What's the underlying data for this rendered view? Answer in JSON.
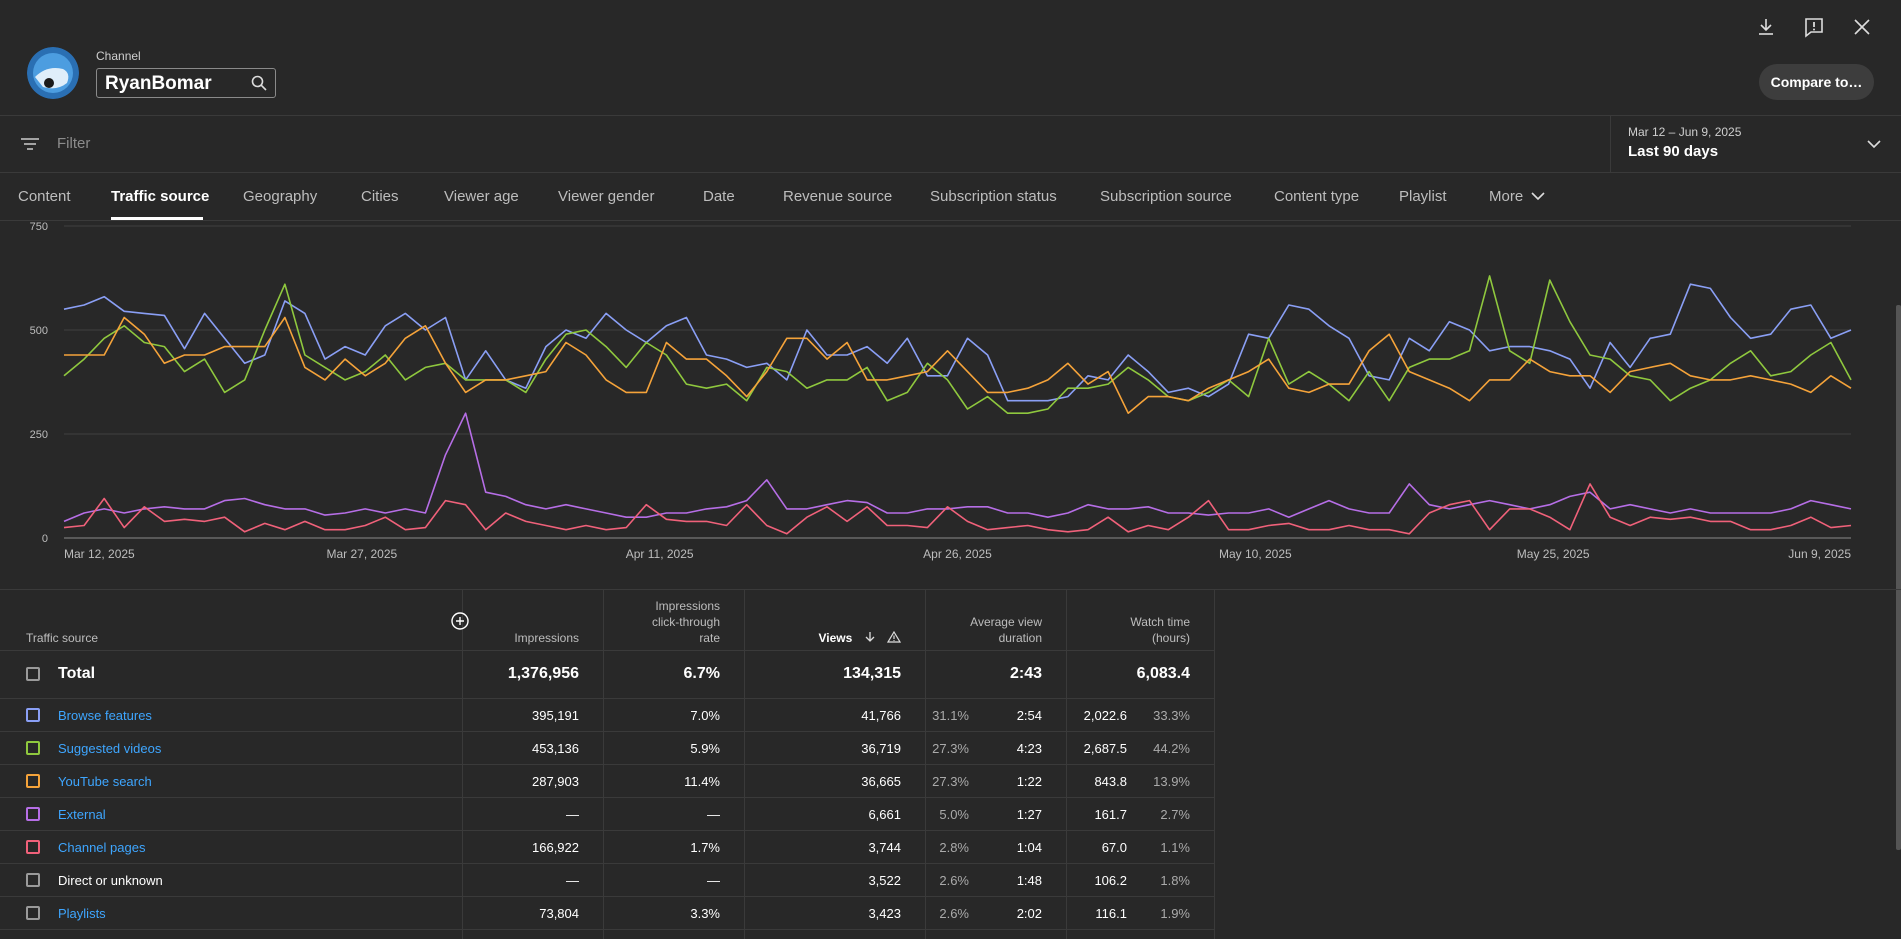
{
  "header": {
    "channel_label": "Channel",
    "channel_name": "RyanBomar",
    "compare_label": "Compare to…",
    "icons": [
      "download-icon",
      "feedback-icon",
      "close-icon",
      "search-icon"
    ]
  },
  "filter": {
    "placeholder": "Filter",
    "date_range": "Mar 12 – Jun 9, 2025",
    "date_label": "Last 90 days"
  },
  "tabs": [
    "Content",
    "Traffic source",
    "Geography",
    "Cities",
    "Viewer age",
    "Viewer gender",
    "Date",
    "Revenue source",
    "Subscription status",
    "Subscription source",
    "Content type",
    "Playlist",
    "More"
  ],
  "active_tab": "Traffic source",
  "colors": {
    "browse": "#8a9ff5",
    "suggested": "#8fc83e",
    "search": "#f5a33a",
    "external": "#b66ee6",
    "channel": "#f0617a",
    "neutral": "#9a9a9a",
    "link": "#3ea6ff"
  },
  "chart_data": {
    "type": "line",
    "y_ticks": [
      "750",
      "500",
      "250",
      "0"
    ],
    "ylim": [
      0,
      750
    ],
    "x_labels": [
      "Mar 12, 2025",
      "Mar 27, 2025",
      "Apr 11, 2025",
      "Apr 26, 2025",
      "May 10, 2025",
      "May 25, 2025",
      "Jun 9, 2025"
    ],
    "grid": true,
    "series": [
      {
        "name": "Browse features",
        "color": "#8a9ff5",
        "values": [
          550,
          560,
          580,
          545,
          540,
          535,
          455,
          540,
          480,
          420,
          440,
          570,
          540,
          430,
          460,
          440,
          510,
          540,
          500,
          530,
          380,
          450,
          380,
          360,
          460,
          500,
          480,
          540,
          500,
          470,
          510,
          530,
          440,
          430,
          410,
          420,
          380,
          500,
          440,
          440,
          460,
          420,
          480,
          390,
          390,
          480,
          440,
          330,
          330,
          330,
          340,
          390,
          380,
          440,
          400,
          350,
          360,
          340,
          370,
          490,
          480,
          560,
          550,
          510,
          480,
          390,
          380,
          480,
          450,
          520,
          500,
          450,
          460,
          460,
          450,
          430,
          360,
          470,
          410,
          480,
          490,
          610,
          600,
          530,
          480,
          490,
          550,
          560,
          480,
          500
        ]
      },
      {
        "name": "Suggested videos",
        "color": "#8fc83e",
        "values": [
          390,
          430,
          480,
          510,
          470,
          460,
          400,
          430,
          350,
          380,
          500,
          610,
          440,
          410,
          380,
          400,
          440,
          380,
          410,
          420,
          380,
          380,
          380,
          350,
          430,
          490,
          500,
          460,
          410,
          470,
          440,
          370,
          360,
          370,
          330,
          410,
          400,
          360,
          380,
          380,
          410,
          330,
          350,
          420,
          380,
          310,
          340,
          300,
          300,
          310,
          360,
          360,
          370,
          410,
          380,
          340,
          330,
          350,
          380,
          340,
          480,
          370,
          400,
          370,
          330,
          400,
          330,
          410,
          430,
          430,
          450,
          630,
          450,
          420,
          620,
          520,
          440,
          430,
          390,
          380,
          330,
          360,
          380,
          420,
          450,
          390,
          400,
          440,
          470,
          380
        ]
      },
      {
        "name": "YouTube search",
        "color": "#f5a33a",
        "values": [
          440,
          440,
          440,
          530,
          490,
          420,
          440,
          440,
          460,
          460,
          460,
          530,
          410,
          380,
          430,
          390,
          420,
          480,
          510,
          420,
          350,
          380,
          380,
          390,
          400,
          470,
          440,
          380,
          350,
          350,
          470,
          430,
          430,
          390,
          340,
          400,
          480,
          480,
          430,
          470,
          380,
          380,
          390,
          400,
          450,
          400,
          350,
          350,
          360,
          380,
          420,
          370,
          400,
          300,
          340,
          340,
          330,
          360,
          380,
          400,
          430,
          360,
          350,
          370,
          370,
          450,
          490,
          400,
          380,
          360,
          330,
          380,
          380,
          430,
          400,
          390,
          390,
          350,
          400,
          410,
          420,
          390,
          380,
          380,
          390,
          380,
          370,
          350,
          390,
          360
        ]
      },
      {
        "name": "External",
        "color": "#b66ee6",
        "values": [
          40,
          60,
          70,
          60,
          70,
          75,
          70,
          70,
          90,
          95,
          80,
          70,
          70,
          55,
          60,
          70,
          60,
          70,
          60,
          200,
          300,
          110,
          100,
          80,
          70,
          80,
          70,
          60,
          50,
          50,
          60,
          60,
          70,
          75,
          90,
          140,
          70,
          70,
          80,
          90,
          85,
          60,
          60,
          70,
          70,
          75,
          75,
          60,
          60,
          50,
          60,
          80,
          70,
          70,
          75,
          60,
          60,
          55,
          60,
          60,
          70,
          50,
          70,
          90,
          70,
          60,
          60,
          130,
          80,
          70,
          80,
          90,
          80,
          70,
          80,
          100,
          110,
          70,
          80,
          70,
          60,
          70,
          60,
          60,
          60,
          60,
          70,
          90,
          80,
          70
        ]
      },
      {
        "name": "Channel pages",
        "color": "#f0617a",
        "values": [
          25,
          30,
          95,
          25,
          75,
          40,
          45,
          40,
          50,
          15,
          35,
          20,
          40,
          20,
          20,
          30,
          50,
          20,
          25,
          90,
          80,
          20,
          60,
          40,
          30,
          20,
          30,
          20,
          25,
          80,
          45,
          40,
          40,
          30,
          80,
          30,
          10,
          50,
          75,
          40,
          75,
          30,
          30,
          25,
          75,
          40,
          20,
          25,
          30,
          20,
          15,
          20,
          50,
          15,
          30,
          20,
          50,
          90,
          20,
          20,
          30,
          35,
          20,
          20,
          30,
          20,
          20,
          10,
          60,
          80,
          90,
          20,
          70,
          70,
          50,
          20,
          130,
          50,
          30,
          50,
          45,
          50,
          40,
          40,
          20,
          20,
          30,
          50,
          25,
          30
        ]
      }
    ]
  },
  "table": {
    "headers": {
      "source": "Traffic source",
      "impressions": "Impressions",
      "ctr_l1": "Impressions",
      "ctr_l2": "click-through",
      "ctr_l3": "rate",
      "views": "Views",
      "avd_l1": "Average view",
      "avd_l2": "duration",
      "wt_l1": "Watch time",
      "wt_l2": "(hours)"
    },
    "total": {
      "label": "Total",
      "impressions": "1,376,956",
      "ctr": "6.7%",
      "views": "134,315",
      "avd": "2:43",
      "watch": "6,083.4"
    },
    "rows": [
      {
        "label": "Browse features",
        "color": "#8a9ff5",
        "link": true,
        "impressions": "395,191",
        "ctr": "7.0%",
        "views": "41,766",
        "views_pct": "31.1%",
        "avd": "2:54",
        "watch": "2,022.6",
        "watch_pct": "33.3%"
      },
      {
        "label": "Suggested videos",
        "color": "#8fc83e",
        "link": true,
        "impressions": "453,136",
        "ctr": "5.9%",
        "views": "36,719",
        "views_pct": "27.3%",
        "avd": "4:23",
        "watch": "2,687.5",
        "watch_pct": "44.2%"
      },
      {
        "label": "YouTube search",
        "color": "#f5a33a",
        "link": true,
        "impressions": "287,903",
        "ctr": "11.4%",
        "views": "36,665",
        "views_pct": "27.3%",
        "avd": "1:22",
        "watch": "843.8",
        "watch_pct": "13.9%"
      },
      {
        "label": "External",
        "color": "#b66ee6",
        "link": true,
        "impressions": "—",
        "ctr": "—",
        "views": "6,661",
        "views_pct": "5.0%",
        "avd": "1:27",
        "watch": "161.7",
        "watch_pct": "2.7%"
      },
      {
        "label": "Channel pages",
        "color": "#f0617a",
        "link": true,
        "impressions": "166,922",
        "ctr": "1.7%",
        "views": "3,744",
        "views_pct": "2.8%",
        "avd": "1:04",
        "watch": "67.0",
        "watch_pct": "1.1%"
      },
      {
        "label": "Direct or unknown",
        "color": "#9a9a9a",
        "link": false,
        "impressions": "—",
        "ctr": "—",
        "views": "3,522",
        "views_pct": "2.6%",
        "avd": "1:48",
        "watch": "106.2",
        "watch_pct": "1.8%"
      },
      {
        "label": "Playlists",
        "color": "#9a9a9a",
        "link": true,
        "impressions": "73,804",
        "ctr": "3.3%",
        "views": "3,423",
        "views_pct": "2.6%",
        "avd": "2:02",
        "watch": "116.1",
        "watch_pct": "1.9%"
      }
    ]
  }
}
